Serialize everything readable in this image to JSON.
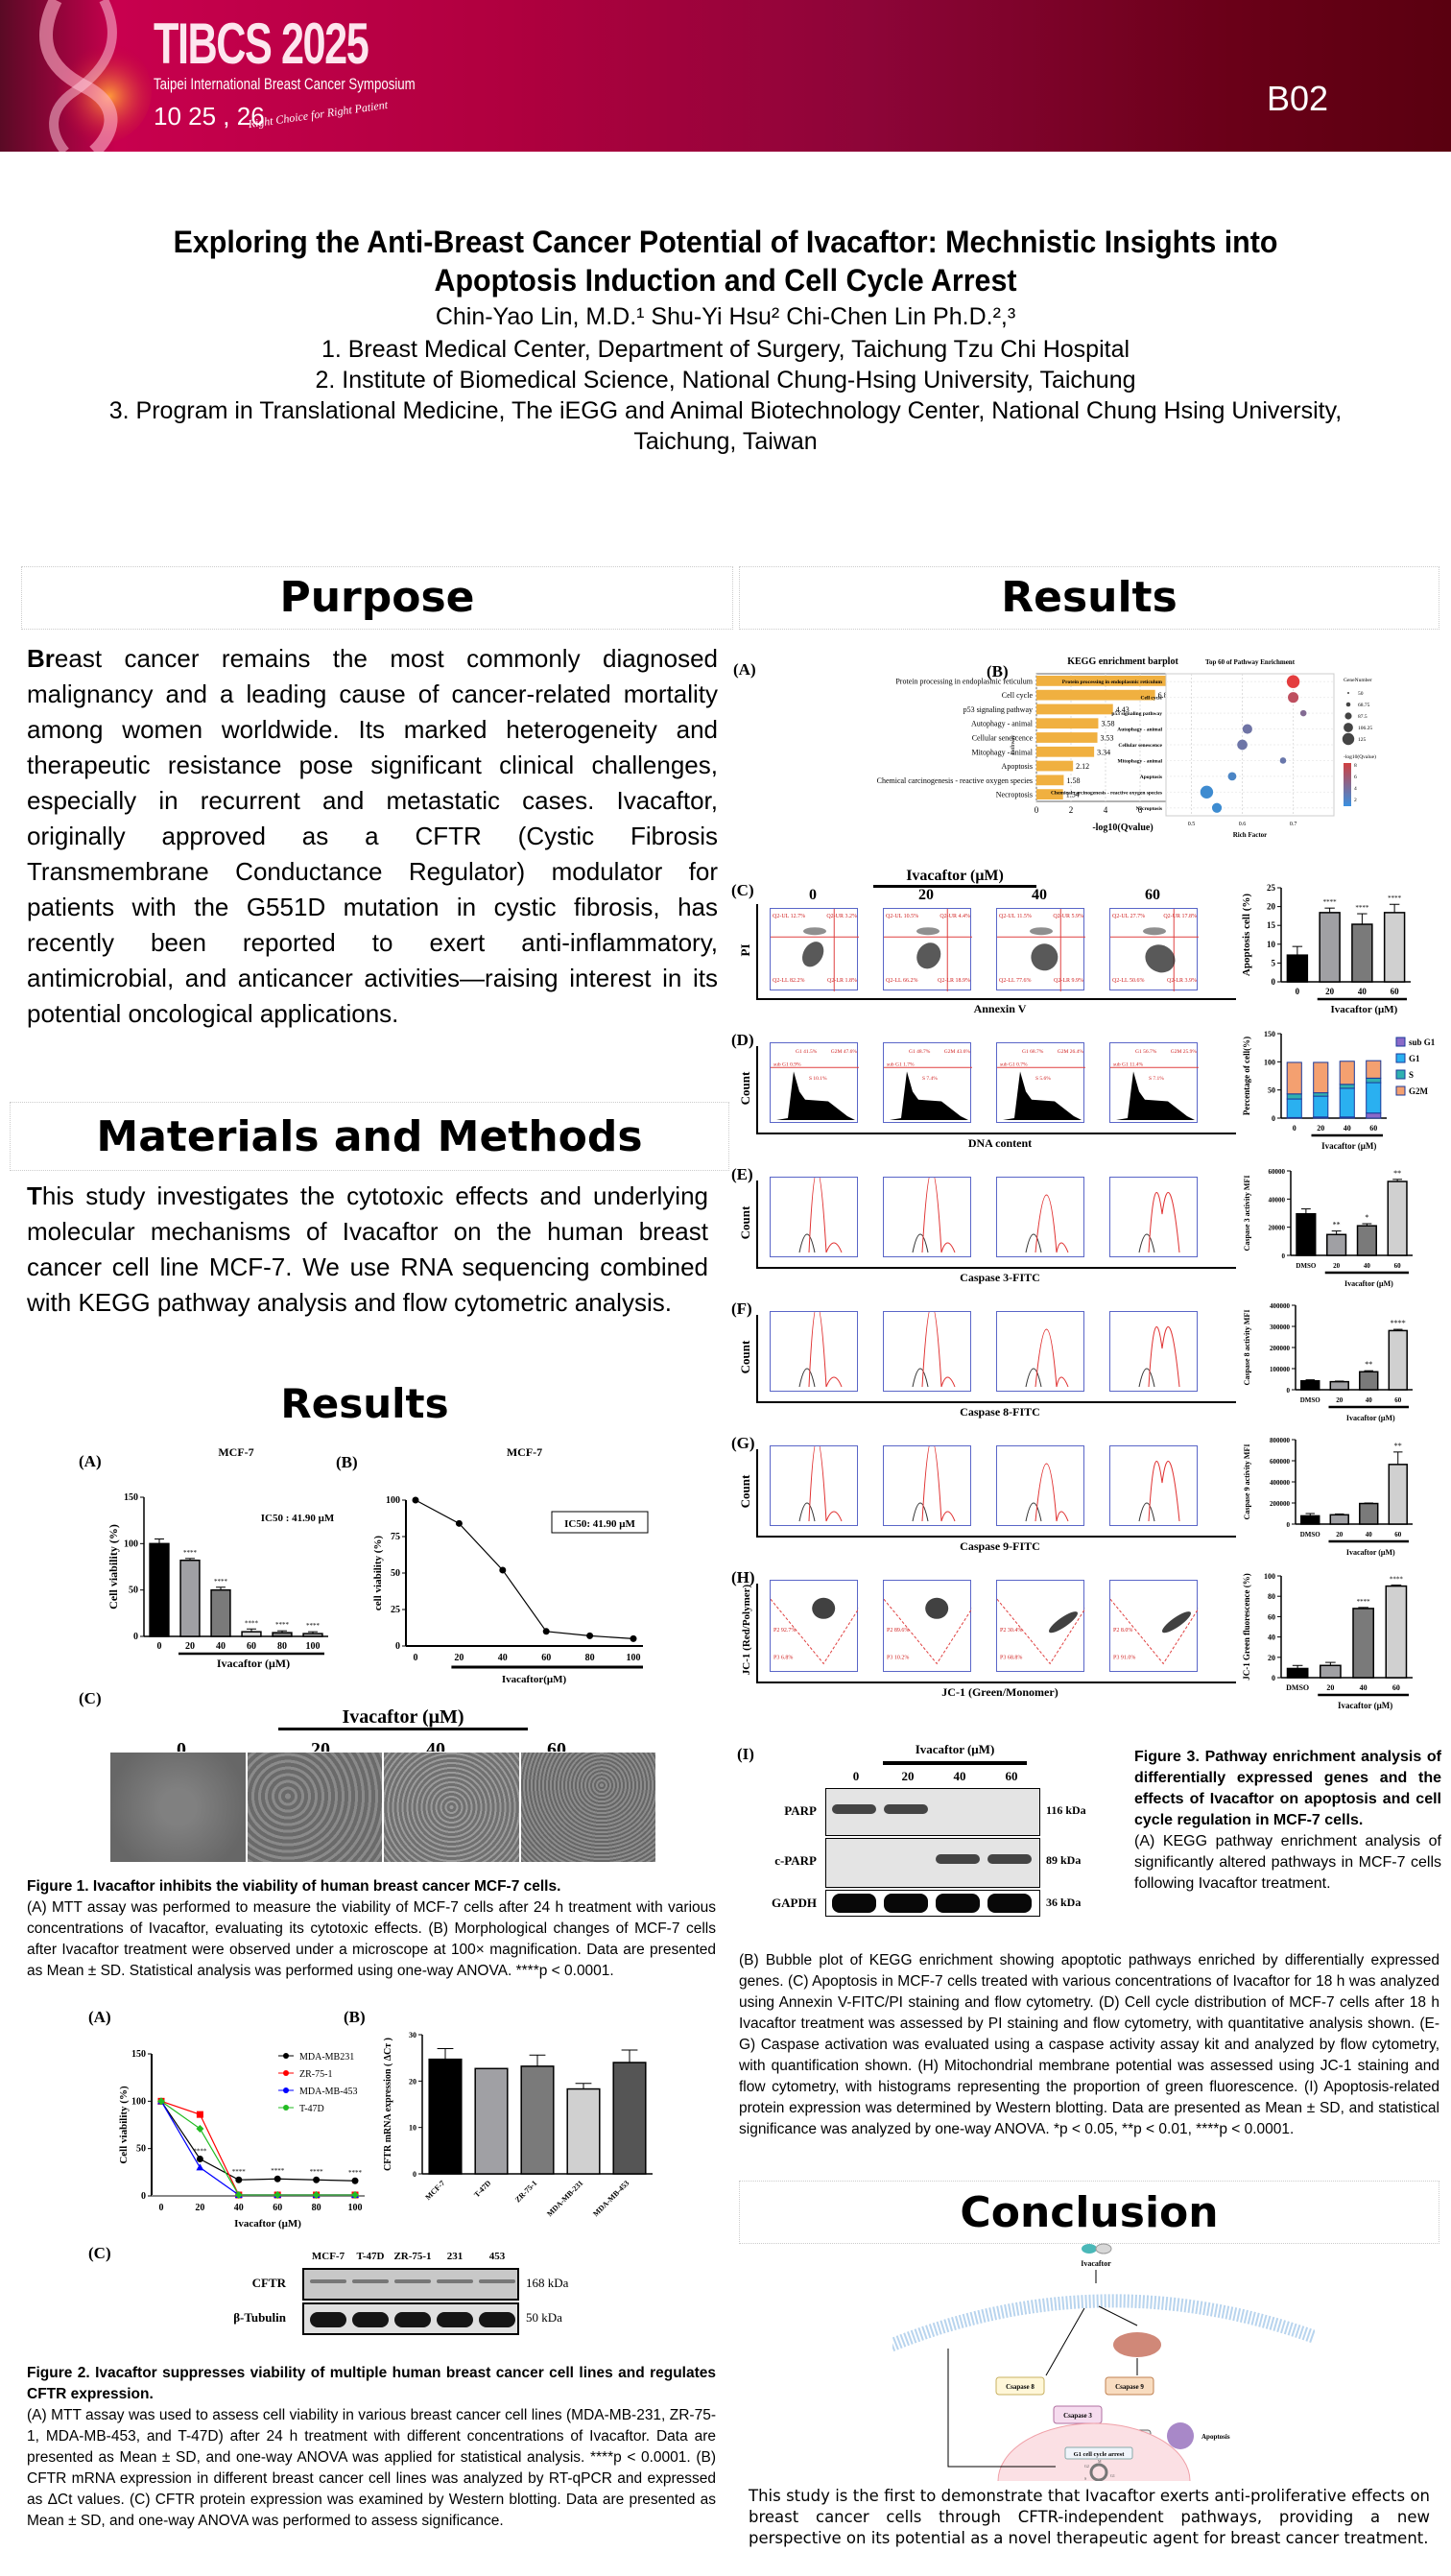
{
  "banner": {
    "logo_title": "TIBCS 2025",
    "logo_subtitle": "Taipei International Breast Cancer Symposium",
    "logo_date": "10 25 , 26",
    "logo_tagline": "Right Choice for Right Patient",
    "poster_code": "B02",
    "colors": {
      "primary": "#b0003f",
      "dark": "#5a0010"
    }
  },
  "header": {
    "title_line1": "Exploring the Anti-Breast Cancer Potential of Ivacaftor: Mechnistic Insights into",
    "title_line2": "Apoptosis Induction and Cell Cycle Arrest",
    "authors": "Chin-Yao Lin, M.D.¹  Shu-Yi Hsu² Chi-Chen Lin Ph.D.²,³",
    "affiliations": [
      "1. Breast Medical Center, Department of Surgery, Taichung Tzu Chi Hospital",
      "2. Institute of Biomedical Science, National Chung-Hsing University, Taichung",
      "3. Program in Translational Medicine, The iEGG and Animal Biotechnology Center, National Chung Hsing University,",
      "Taichung, Taiwan"
    ]
  },
  "purpose": {
    "heading": "Purpose",
    "lead": "Br",
    "text": "east cancer remains the most commonly diagnosed malignancy and a leading cause of cancer-related mortality among women worldwide. Its marked heterogeneity and therapeutic resistance pose significant clinical challenges, especially in recurrent and metastatic cases. Ivacaftor, originally approved as a CFTR (Cystic Fibrosis Transmembrane Conductance Regulator) modulator for patients with the G551D mutation in cystic fibrosis, has recently been reported to exert anti-inflammatory, antimicrobial, and anticancer activities—raising interest in its potential oncological applications."
  },
  "methods": {
    "heading": "Materials and Methods",
    "lead": "T",
    "text": "his study investigates the cytotoxic effects and underlying molecular mechanisms of Ivacaftor on the human breast cancer cell line MCF-7. We use RNA sequencing combined with KEGG pathway analysis and flow cytometric analysis."
  },
  "results_left": {
    "heading": "Results",
    "fig1": {
      "panel_a": "(A)",
      "panel_b": "(B)",
      "panel_c": "(C)",
      "ic50_a": "IC50 : 41.90 μM",
      "ic50_b": "IC50: 41.90 μM",
      "micro_header": "Ivacaftor (μM)",
      "micro_labels": [
        "0",
        "20",
        "40",
        "60"
      ],
      "caption_title": "Figure 1. Ivacaftor inhibits the viability of human breast cancer MCF-7 cells.",
      "caption_text": "(A) MTT assay was performed to measure the viability of MCF-7 cells after 24 h treatment with various concentrations of Ivacaftor, evaluating its cytotoxic effects. (B) Morphological changes of MCF-7 cells after Ivacaftor treatment were observed under a microscope at 100× magnification. Data are presented as Mean ± SD. Statistical analysis was performed using one-way ANOVA. ****p < 0.0001."
    },
    "fig2": {
      "panel_a": "(A)",
      "panel_b": "(B)",
      "panel_c": "(C)",
      "blot_lanes": [
        "MCF-7",
        "T-47D",
        "ZR-75-1",
        "231",
        "453"
      ],
      "blot_rows": [
        {
          "label": "CFTR",
          "kda": "168 kDa"
        },
        {
          "label": "β-Tubulin",
          "kda": "50 kDa"
        }
      ],
      "caption_title": "Figure 2. Ivacaftor suppresses viability of multiple human breast cancer cell lines and regulates CFTR expression.",
      "caption_text": "(A) MTT assay was used to assess cell viability in various breast cancer cell lines (MDA-MB-231, ZR-75-1, MDA-MB-453, and T-47D) after 24 h treatment with different concentrations of Ivacaftor. Data are presented as Mean ± SD, and one-way ANOVA was applied for statistical analysis. ****p < 0.0001. (B) CFTR mRNA expression in different breast cancer cell lines was analyzed by RT-qPCR and expressed as ΔCt values. (C) CFTR protein expression was examined by Western blotting. Data are presented as Mean ± SD, and one-way ANOVA was performed to assess significance."
    }
  },
  "results_right": {
    "heading": "Results",
    "panels": [
      "(A)",
      "(B)",
      "(C)",
      "(D)",
      "(E)",
      "(F)",
      "(G)",
      "(H)",
      "(I)"
    ],
    "flow_header": "Ivacaftor (μM)",
    "flow_doses": [
      "0",
      "20",
      "40",
      "60"
    ],
    "axis_labels": {
      "c_y": "PI",
      "c_x": "Annexin V",
      "d_y": "Count",
      "d_x": "DNA content",
      "e_y": "Count",
      "e_x": "Caspase 3-FITC",
      "f_y": "Count",
      "f_x": "Caspase 8-FITC",
      "g_y": "Count",
      "g_x": "Caspase 9-FITC",
      "h_y": "JC-1 (Red/Polymer)",
      "h_x": "JC-1 (Green/Monomer)"
    },
    "annexin_quadrants": [
      {
        "ul": "Q2-UL 12.7%",
        "ur": "Q2-UR 3.2%",
        "ll": "Q2-LL 82.2%",
        "lr": "Q2-LR 1.8%"
      },
      {
        "ul": "Q2-UL 10.5%",
        "ur": "Q2-UR 4.4%",
        "ll": "Q2-LL 66.2%",
        "lr": "Q2-LR 18.9%"
      },
      {
        "ul": "Q2-UL 11.5%",
        "ur": "Q2-UR 5.9%",
        "ll": "Q2-LL 77.6%",
        "lr": "Q2-LR 9.9%"
      },
      {
        "ul": "Q2-UL 27.7%",
        "ur": "Q2-UR 17.8%",
        "ll": "Q2-LL 50.6%",
        "lr": "Q2-LR 3.9%"
      }
    ],
    "cellcycle_gates": [
      {
        "sub": "sub G1 0.9%",
        "g1": "G1 41.5%",
        "s": "S 10.1%",
        "g2m": "G2M 47.6%"
      },
      {
        "sub": "sub G1 1.7%",
        "g1": "G1 48.7%",
        "s": "S 7.4%",
        "g2m": "G2M 43.6%"
      },
      {
        "sub": "sub G1 0.7%",
        "g1": "G1 68.7%",
        "s": "S 5.6%",
        "g2m": "G2M 26.4%"
      },
      {
        "sub": "sub G1 11.4%",
        "g1": "G1 56.7%",
        "s": "S 7.1%",
        "g2m": "G2M 25.9%"
      }
    ],
    "jc1_gates": [
      {
        "p2": "P2 92.7%",
        "p3": "P3 6.8%"
      },
      {
        "p2": "P2 89.6%",
        "p3": "P3 10.2%"
      },
      {
        "p2": "P2 30.4%",
        "p3": "P3 68.8%"
      },
      {
        "p2": "P2 8.0%",
        "p3": "P3 91.0%"
      }
    ],
    "western_i": {
      "header": "Ivacaftor (μM)",
      "lanes": [
        "0",
        "20",
        "40",
        "60"
      ],
      "rows": [
        {
          "label": "PARP",
          "kda": "116 kDa"
        },
        {
          "label": "c-PARP",
          "kda": "89 kDa"
        },
        {
          "label": "GAPDH",
          "kda": "36 kDa"
        }
      ]
    },
    "fig3_caption_title": "Figure 3. Pathway enrichment analysis of differentially expressed genes and the effects of Ivacaftor on apoptosis and cell cycle regulation in MCF-7 cells.",
    "fig3_caption_a": "(A) KEGG pathway enrichment analysis of significantly altered pathways in MCF-7 cells following Ivacaftor treatment.",
    "fig3_caption_rest": "(B) Bubble plot of KEGG enrichment showing apoptotic pathways enriched by differentially expressed genes. (C) Apoptosis in MCF-7 cells treated with various concentrations of Ivacaftor for 18 h was analyzed using Annexin V-FITC/PI staining and flow cytometry. (D) Cell cycle distribution of MCF-7 cells after 18 h Ivacaftor treatment was assessed by PI staining and flow cytometry, with quantitative analysis shown. (E-G) Caspase activation was evaluated using a caspase activity assay kit and analyzed by flow cytometry, with quantification shown. (H) Mitochondrial membrane potential was assessed using JC-1 staining and flow cytometry, with histograms representing the proportion of green fluorescence. (I) Apoptosis-related protein expression was determined by Western blotting. Data are presented as Mean ± SD, and statistical significance was analyzed by one-way ANOVA. *p < 0.05, **p < 0.01, ****p < 0.0001."
  },
  "conclusion": {
    "heading": "Conclusion",
    "diagram": {
      "drug": "Ivacaftor",
      "casp8": "Csapase 8",
      "casp9": "Csapase 9",
      "casp3": "Csapase 3",
      "parp": "PARP",
      "apoptosis": "Apoptosis",
      "arrest": "G1 cell cycle arrest",
      "phases": [
        "M",
        "G2",
        "S",
        "G1"
      ]
    },
    "text": "This study is the first to demonstrate that Ivacaftor exerts anti-proliferative effects on breast cancer cells through CFTR-independent pathways, providing a new perspective on its potential as a novel therapeutic agent for breast cancer treatment."
  },
  "chart_data": [
    {
      "id": "fig1a",
      "type": "bar",
      "title": "MCF-7",
      "categories": [
        "0",
        "20",
        "40",
        "60",
        "80",
        "100"
      ],
      "values": [
        100,
        82,
        50,
        5,
        4,
        3
      ],
      "errors": [
        5,
        2,
        3,
        3,
        2,
        2
      ],
      "significance": [
        "",
        "****",
        "****",
        "****",
        "****",
        "****"
      ],
      "ylabel": "Cell viability (%)",
      "xlabel": "Ivacaftor (μM)",
      "ylim": [
        0,
        150
      ],
      "yticks": [
        0,
        50,
        100,
        150
      ],
      "colors": [
        "#000000",
        "#a0a0a4",
        "#7a7a7a",
        "#d0d0d0",
        "#808080",
        "#b0b0b0"
      ]
    },
    {
      "id": "fig1b",
      "type": "line",
      "title": "MCF-7",
      "x": [
        0,
        20,
        40,
        60,
        80,
        100
      ],
      "y": [
        100,
        84,
        52,
        10,
        7,
        5
      ],
      "ylabel": "cell viability (%)",
      "xlabel": "Ivacaftor(μM)",
      "ylim": [
        0,
        100
      ],
      "yticks": [
        0,
        25,
        50,
        75,
        100
      ],
      "xticks": [
        "0",
        "20",
        "40",
        "60",
        "80",
        "100"
      ]
    },
    {
      "id": "fig2a",
      "type": "line",
      "x": [
        0,
        20,
        40,
        60,
        80,
        100
      ],
      "series": [
        {
          "name": "MDA-MB231",
          "y": [
            100,
            39,
            17,
            18,
            17,
            16
          ],
          "color": "#000000",
          "marker": "circle"
        },
        {
          "name": "ZR-75-1",
          "y": [
            100,
            86,
            1,
            1,
            1,
            1
          ],
          "color": "#ff0000",
          "marker": "square"
        },
        {
          "name": "MDA-MB-453",
          "y": [
            100,
            30,
            1,
            1,
            1,
            1
          ],
          "color": "#0000ff",
          "marker": "triangle"
        },
        {
          "name": "T-47D",
          "y": [
            100,
            71,
            1,
            1,
            1,
            1
          ],
          "color": "#22bb22",
          "marker": "diamond"
        }
      ],
      "ylabel": "Cell viability (%)",
      "xlabel": "Ivacaftor (μM)",
      "ylim": [
        0,
        150
      ],
      "yticks": [
        0,
        50,
        100,
        150
      ],
      "xticks": [
        "0",
        "20",
        "40",
        "60",
        "80",
        "100"
      ],
      "sig_label": "****"
    },
    {
      "id": "fig2b",
      "type": "bar",
      "categories": [
        "MCF-7",
        "T-47D",
        "ZR-75-1",
        "MDA-MB-231",
        "MDA-MB-453"
      ],
      "values": [
        24.7,
        22.7,
        23.2,
        18.3,
        24.0
      ],
      "errors": [
        2.3,
        0,
        2.4,
        1.2,
        2.7
      ],
      "ylabel": "CFTR mRNA expression ( ΔCт )",
      "ylim": [
        0,
        30
      ],
      "yticks": [
        0,
        10,
        20,
        30
      ],
      "colors": [
        "#000000",
        "#a0a0a4",
        "#7a7a7a",
        "#d0d0d0",
        "#555555"
      ]
    },
    {
      "id": "fig3a",
      "type": "bar",
      "title": "KEGG enrichment barplot",
      "categories": [
        "Protein processing in endoplasmic reticulum",
        "Cell cycle",
        "p53 signaling pathway",
        "Autophagy - animal",
        "Cellular senescence",
        "Mitophagy - animal",
        "Apoptosis",
        "Chemical carcinogenesis - reactive oxygen species",
        "Necroptosis"
      ],
      "values": [
        8.41,
        6.87,
        4.43,
        3.58,
        3.53,
        3.34,
        2.12,
        1.58,
        1.54
      ],
      "labels": [
        "8.41",
        "6.87",
        "4.43",
        "3.58",
        "3.53",
        "3.34",
        "2.12",
        "1.58",
        "1.54"
      ],
      "xlabel": "-log10(Qvalue)",
      "xlim": [
        0,
        10
      ],
      "xticks": [
        0,
        2,
        4,
        6,
        8,
        10
      ],
      "color": "#f0b040"
    },
    {
      "id": "fig3b",
      "type": "scatter",
      "title": "Top 60 of Pathway Enrichment",
      "categories": [
        "Protein processing in endoplasmic reticulum",
        "Cell cycle",
        "p53 signaling pathway",
        "Autophagy - animal",
        "Cellular senescence",
        "Mitophagy - animal",
        "Apoptosis",
        "Chemical carcinogenesis - reactive oxygen species",
        "Necroptosis"
      ],
      "x": [
        0.7,
        0.7,
        0.72,
        0.61,
        0.6,
        0.68,
        0.58,
        0.53,
        0.55
      ],
      "size": [
        125,
        100,
        50,
        90,
        95,
        50,
        75,
        125,
        90
      ],
      "qvalue": [
        8.41,
        6.87,
        4.43,
        3.58,
        3.53,
        3.34,
        2.12,
        1.58,
        1.54
      ],
      "xlabel": "Rich Factor",
      "ylabel": "Pathway",
      "xticks": [
        0.5,
        0.6,
        0.7
      ],
      "xlim": [
        0.45,
        0.78
      ],
      "legend_size_title": "GeneNumber",
      "legend_sizes": [
        "50",
        "68.75",
        "87.5",
        "106.25",
        "125"
      ],
      "legend_color_title": "-log10(Qvalue)",
      "legend_color_ticks": [
        "8",
        "6",
        "4",
        "2"
      ]
    },
    {
      "id": "fig3c",
      "type": "bar",
      "categories": [
        "0",
        "20",
        "40",
        "60"
      ],
      "values": [
        7.1,
        18.4,
        15.3,
        18.4
      ],
      "errors": [
        2.3,
        1.2,
        2.8,
        2.2
      ],
      "significance": [
        "",
        "****",
        "****",
        "****"
      ],
      "ylabel": "Apoptosis cell (%)",
      "xlabel": "Ivacaftor (μM)",
      "ylim": [
        0,
        25
      ],
      "yticks": [
        0,
        5,
        10,
        15,
        20,
        25
      ],
      "colors": [
        "#000000",
        "#a0a0a4",
        "#7a7a7a",
        "#d0d0d0"
      ]
    },
    {
      "id": "fig3d",
      "type": "bar",
      "stacked": true,
      "categories": [
        "0",
        "20",
        "40",
        "60"
      ],
      "series": [
        {
          "name": "sub G1",
          "values": [
            1,
            2,
            2,
            9
          ],
          "color": "#8a6ac8"
        },
        {
          "name": "G1",
          "values": [
            33,
            37,
            51,
            54
          ],
          "color": "#2ab0f0"
        },
        {
          "name": "S",
          "values": [
            9,
            6,
            7,
            8
          ],
          "color": "#30b0b0"
        },
        {
          "name": "G2M",
          "values": [
            56,
            54,
            41,
            31
          ],
          "color": "#f4a070"
        }
      ],
      "ylabel": "Percentage of cell(%)",
      "xlabel": "Ivacaftor (μM)",
      "ylim": [
        0,
        150
      ],
      "yticks": [
        0,
        50,
        100,
        150
      ]
    },
    {
      "id": "fig3e",
      "type": "bar",
      "categories": [
        "DMSO",
        "20",
        "40",
        "60"
      ],
      "values": [
        29500,
        14800,
        21000,
        52500
      ],
      "errors": [
        3500,
        2500,
        1500,
        1500
      ],
      "significance": [
        "",
        "**",
        "*",
        "**"
      ],
      "ylabel": "Caspase 3 activity MFI",
      "xlabel": "Ivacaftor (μM)",
      "ylim": [
        0,
        60000
      ],
      "yticks": [
        0,
        20000,
        40000,
        60000
      ],
      "colors": [
        "#000000",
        "#a0a0a4",
        "#7a7a7a",
        "#d0d0d0"
      ]
    },
    {
      "id": "fig3f",
      "type": "bar",
      "categories": [
        "DMSO",
        "20",
        "40",
        "60"
      ],
      "values": [
        42000,
        38000,
        85000,
        280000
      ],
      "errors": [
        5000,
        3000,
        5000,
        6000
      ],
      "significance": [
        "",
        "",
        "**",
        "****"
      ],
      "ylabel": "Caspase 8 activity MFI",
      "xlabel": "Ivacaftor (μM)",
      "ylim": [
        0,
        400000
      ],
      "yticks": [
        0,
        100000,
        200000,
        300000,
        400000
      ],
      "colors": [
        "#000000",
        "#a0a0a4",
        "#7a7a7a",
        "#d0d0d0"
      ]
    },
    {
      "id": "fig3g",
      "type": "bar",
      "categories": [
        "DMSO",
        "20",
        "40",
        "60"
      ],
      "values": [
        78000,
        88000,
        195000,
        565000
      ],
      "errors": [
        22000,
        8000,
        5000,
        118000
      ],
      "significance": [
        "",
        "",
        "",
        "**"
      ],
      "ylabel": "Caspase 9 activity MFI",
      "xlabel": "Ivacaftor (μM)",
      "ylim": [
        0,
        800000
      ],
      "yticks": [
        0,
        200000,
        400000,
        600000,
        800000
      ],
      "colors": [
        "#000000",
        "#a0a0a4",
        "#7a7a7a",
        "#d0d0d0"
      ]
    },
    {
      "id": "fig3h",
      "type": "bar",
      "categories": [
        "DMSO",
        "20",
        "40",
        "60"
      ],
      "values": [
        9,
        12,
        68,
        90
      ],
      "errors": [
        3,
        3,
        1,
        1
      ],
      "significance": [
        "",
        "",
        "****",
        "****"
      ],
      "ylabel": "JC-1 Green fluorescence (%)",
      "xlabel": "Ivacaftor (μM)",
      "ylim": [
        0,
        100
      ],
      "yticks": [
        0,
        20,
        40,
        60,
        80,
        100
      ],
      "colors": [
        "#000000",
        "#a0a0a4",
        "#7a7a7a",
        "#d0d0d0"
      ]
    }
  ]
}
